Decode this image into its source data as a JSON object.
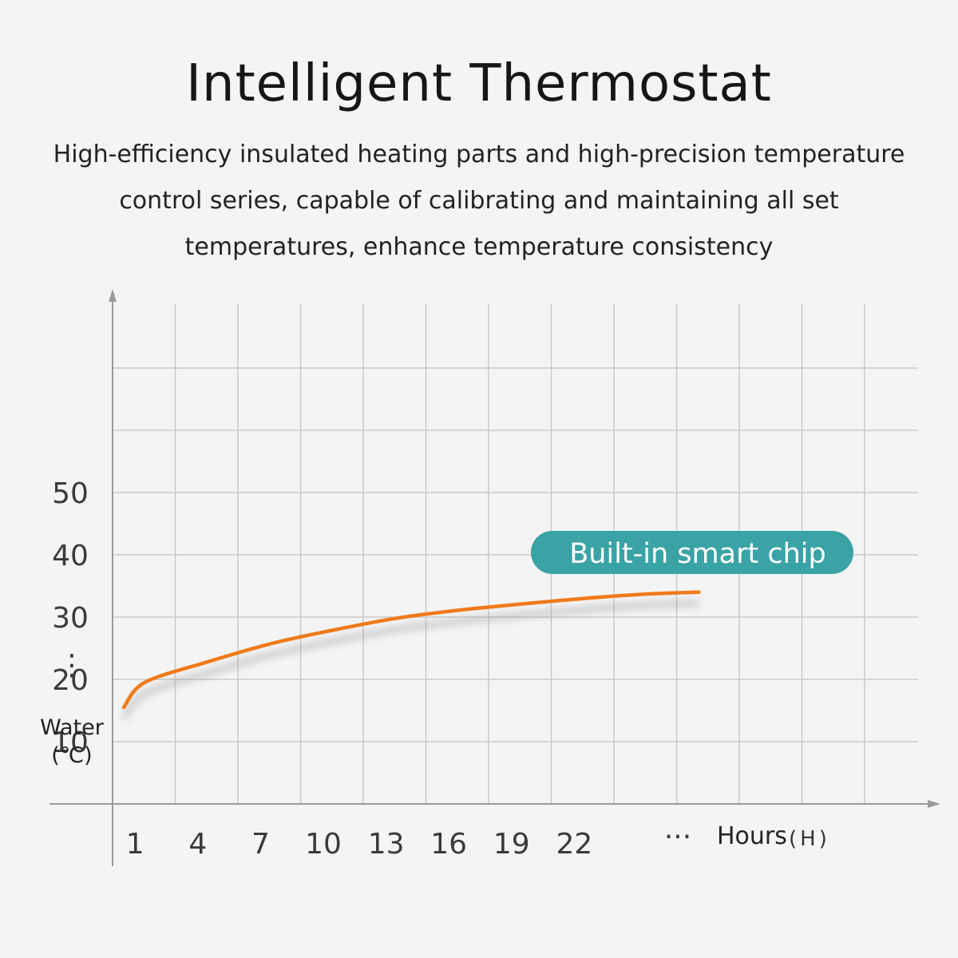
{
  "title": "Intelligent Thermostat",
  "subtitle_lines": [
    "High-efficiency insulated heating parts and high-precision temperature",
    "control series, capable of calibrating and maintaining all set",
    "temperatures, enhance temperature consistency"
  ],
  "badge": "Built-in smart chip",
  "colors": {
    "curve": "#f07a1a",
    "badge": "#3aa3a6",
    "grid": "#c9c9c9",
    "axis": "#9a9a9a"
  },
  "chart_data": {
    "type": "line",
    "ylabel_lines": [
      "Water",
      "(℃)"
    ],
    "xlabel": "Hours",
    "xlabel_unit": "(H)",
    "x_ticks": [
      "1",
      "4",
      "7",
      "10",
      "13",
      "16",
      "19",
      "22"
    ],
    "x_ellipsis": "···",
    "y_ticks": [
      "50",
      "40",
      "30",
      "20",
      "10"
    ],
    "y_ellipsis": "⋮",
    "ylim": [
      0,
      60
    ],
    "grid": true,
    "series": [
      {
        "x": [
          0,
          1,
          4,
          7,
          10,
          13,
          16,
          19,
          22,
          25,
          27.5
        ],
        "y": [
          15.5,
          19.5,
          22.8,
          25.7,
          27.9,
          29.8,
          31.1,
          32.1,
          33.0,
          33.7,
          34.0
        ]
      }
    ]
  }
}
